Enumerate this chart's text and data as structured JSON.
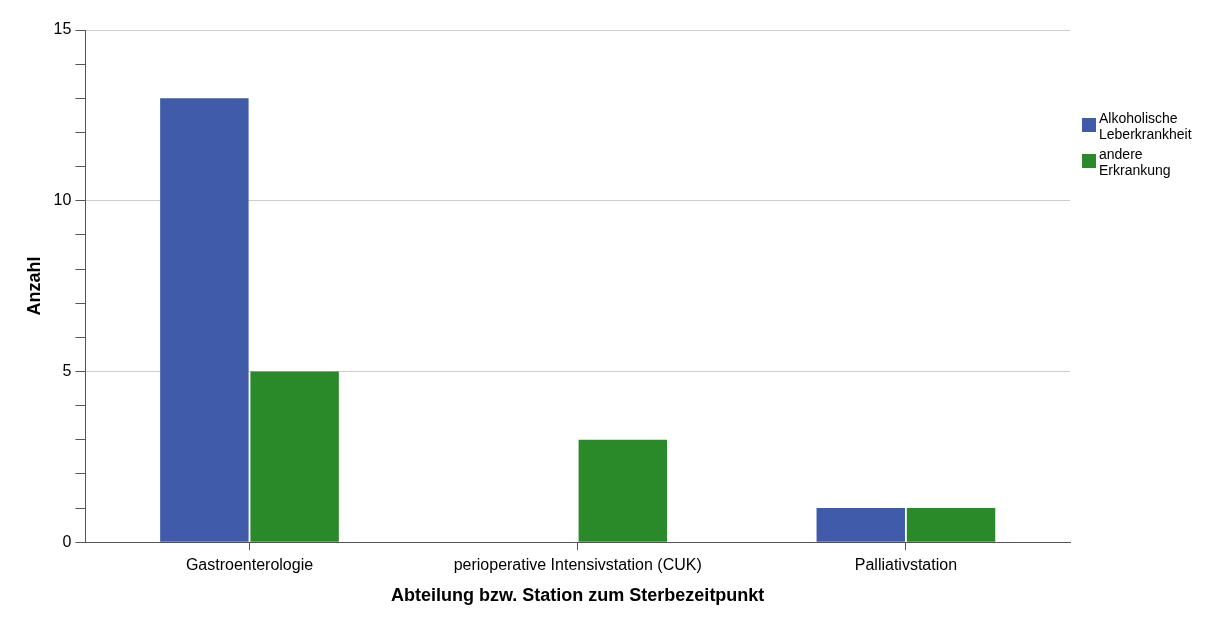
{
  "chart_data": {
    "type": "bar",
    "xlabel": "Abteilung bzw. Station zum Sterbezeitpunkt",
    "ylabel": "Anzahl",
    "categories": [
      "Gastroenterologie",
      "perioperative Intensivstation (CUK)",
      "Palliativstation"
    ],
    "series": [
      {
        "name": "Alkoholische Leberkrankheit",
        "color": "#3f5ba9",
        "values": [
          13,
          0,
          1
        ]
      },
      {
        "name": "andere Erkrankung",
        "color": "#2a8a2a",
        "values": [
          5,
          3,
          1
        ]
      }
    ],
    "ylim": [
      0,
      15
    ],
    "yticks": [
      0,
      {
        "value": 1,
        "label": null
      },
      {
        "value": 2,
        "label": null
      },
      {
        "value": 3,
        "label": null
      },
      {
        "value": 4,
        "label": null
      },
      5,
      {
        "value": 6,
        "label": null
      },
      {
        "value": 7,
        "label": null
      },
      {
        "value": 8,
        "label": null
      },
      {
        "value": 9,
        "label": null
      },
      10,
      {
        "value": 11,
        "label": null
      },
      {
        "value": 12,
        "label": null
      },
      {
        "value": 13,
        "label": null
      },
      {
        "value": 14,
        "label": null
      },
      15
    ],
    "grid": "y",
    "legend": "top right"
  }
}
